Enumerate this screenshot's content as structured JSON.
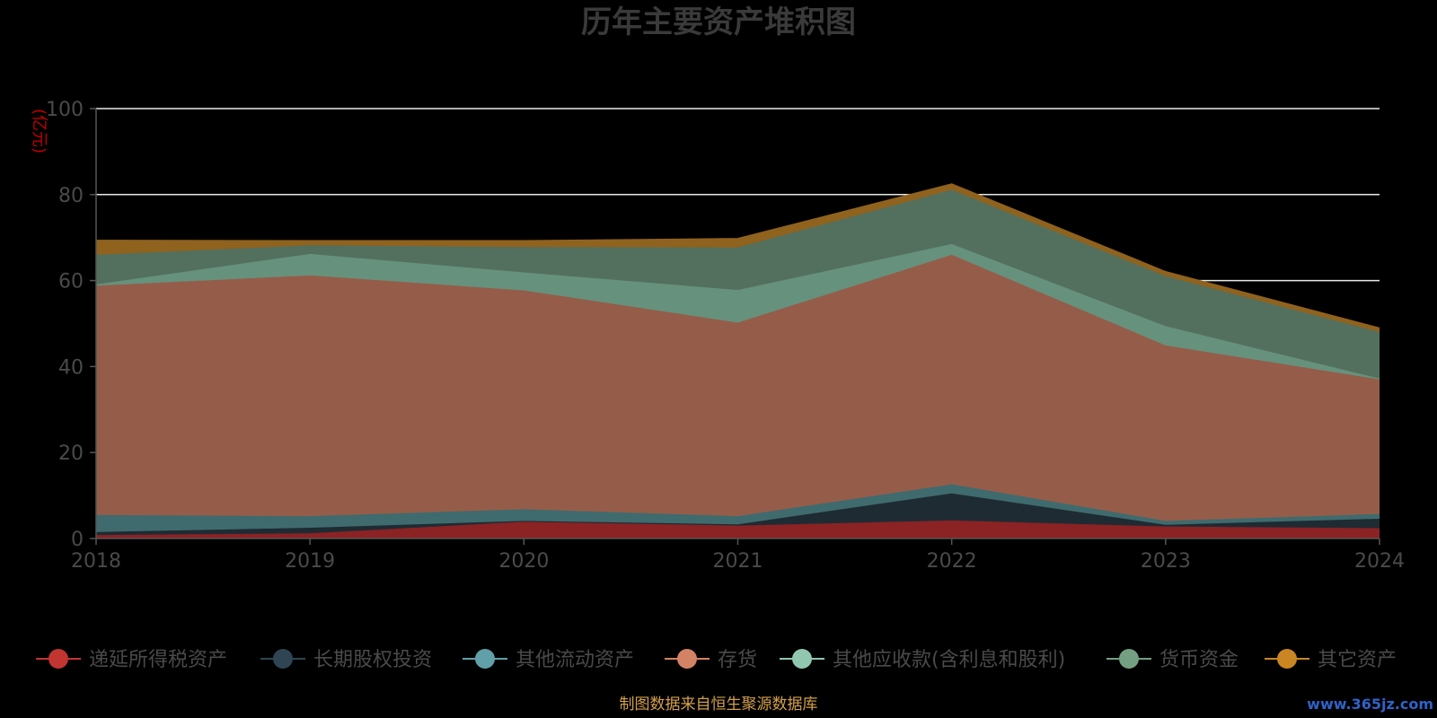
{
  "chart_data": {
    "type": "area",
    "title": "历年主要资产堆积图",
    "ylabel": "(亿元)",
    "x": [
      "2018",
      "2019",
      "2020",
      "2021",
      "2022",
      "2023",
      "2024"
    ],
    "ylim": [
      0,
      100
    ],
    "yticks": [
      "0",
      "20",
      "40",
      "60",
      "80",
      "100"
    ],
    "grid": true,
    "stacked": true,
    "legend_position": "bottom",
    "series": [
      {
        "name": "递延所得税资产",
        "color": "#c23531",
        "fill": "#8b2224",
        "values": [
          0.8,
          1.2,
          3.9,
          3.0,
          4.2,
          2.8,
          2.4
        ]
      },
      {
        "name": "长期股权投资",
        "color": "#2f4554",
        "fill": "#1f2b33",
        "values": [
          0.7,
          1.3,
          0.2,
          0.3,
          6.3,
          0.4,
          2.2
        ]
      },
      {
        "name": "其他流动资产",
        "color": "#61a0a8",
        "fill": "#3f6b6e",
        "values": [
          4.0,
          2.7,
          2.7,
          1.9,
          2.1,
          0.9,
          1.1
        ]
      },
      {
        "name": "存货",
        "color": "#d48265",
        "fill": "#955d49",
        "values": [
          53.3,
          56.0,
          50.9,
          45.0,
          53.4,
          40.8,
          31.3
        ]
      },
      {
        "name": "其他应收款(含利息和股利)",
        "color": "#91c7ae",
        "fill": "#66917d",
        "values": [
          0.3,
          5.0,
          4.2,
          7.6,
          2.5,
          4.5,
          0.2
        ]
      },
      {
        "name": "货币资金",
        "color": "#749f83",
        "fill": "#53705e",
        "values": [
          6.9,
          2.0,
          5.9,
          9.9,
          12.6,
          11.6,
          10.8
        ]
      },
      {
        "name": "其它资产",
        "color": "#ca8622",
        "fill": "#8f621e",
        "values": [
          3.3,
          1.0,
          1.4,
          2.0,
          1.3,
          1.0,
          0.9
        ]
      }
    ]
  },
  "source": "制图数据来自恒生聚源数据库",
  "watermark": "www.365jz.com"
}
